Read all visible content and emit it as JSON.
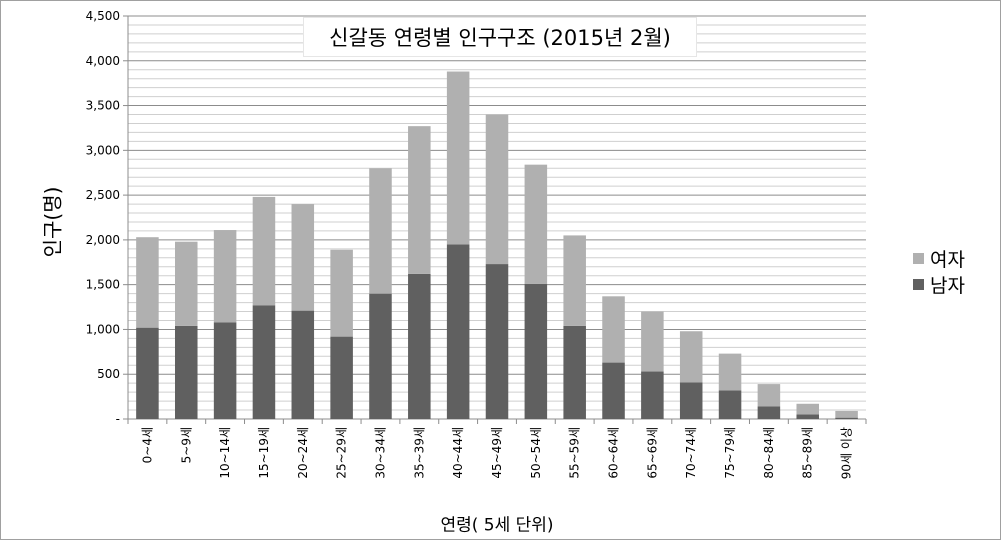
{
  "chart_data": {
    "type": "bar",
    "stacked": true,
    "title": "신갈동 연령별 인구구조 (2015년 2월)",
    "xlabel": "연령( 5세 단위)",
    "ylabel": "인구(명)",
    "ylim": [
      0,
      4500
    ],
    "yticks": [
      0,
      500,
      1000,
      1500,
      2000,
      2500,
      3000,
      3500,
      4000,
      4500
    ],
    "ytick_labels": [
      "-",
      "500",
      "1,000",
      "1,500",
      "2,000",
      "2,500",
      "3,000",
      "3,500",
      "4,000",
      "4,500"
    ],
    "grid": true,
    "legend_position": "right",
    "categories": [
      "0~4세",
      "5~9세",
      "10~14세",
      "15~19세",
      "20~24세",
      "25~29세",
      "30~34세",
      "35~39세",
      "40~44세",
      "45~49세",
      "50~54세",
      "55~59세",
      "60~64세",
      "65~69세",
      "70~74세",
      "75~79세",
      "80~84세",
      "85~89세",
      "90세 이상"
    ],
    "series": [
      {
        "name": "남자",
        "color": "#606060",
        "values": [
          1020,
          1040,
          1080,
          1270,
          1210,
          920,
          1400,
          1620,
          1950,
          1730,
          1510,
          1040,
          630,
          530,
          410,
          320,
          140,
          50,
          15
        ]
      },
      {
        "name": "여자",
        "color": "#b0b0b0",
        "values": [
          1010,
          940,
          1030,
          1210,
          1190,
          970,
          1400,
          1650,
          1930,
          1670,
          1330,
          1010,
          740,
          670,
          570,
          410,
          250,
          120,
          75
        ]
      }
    ]
  }
}
